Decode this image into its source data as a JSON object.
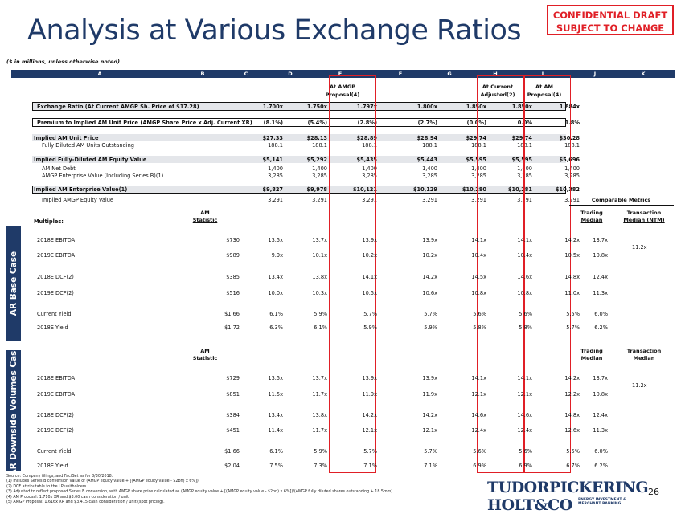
{
  "title": "Analysis at Various Exchange Ratios",
  "confidential": [
    "CONFIDENTIAL DRAFT",
    "SUBJECT TO CHANGE"
  ],
  "units_note": "($ in millions, unless otherwise noted)",
  "letters": [
    "A",
    "B",
    "C",
    "D",
    "E",
    "F",
    "G",
    "H",
    "I",
    "J",
    "K"
  ],
  "col_headers": {
    "E": [
      "At AMGP",
      "Proposal(4)"
    ],
    "H": [
      "At Current",
      "Adjusted(2)"
    ],
    "I": [
      "At AM",
      "Proposal(4)"
    ]
  },
  "top_rows": [
    {
      "label": "Exchange Ratio (At Current AMGP Sh. Price of $17.28)",
      "values": [
        "1.700x",
        "1.750x",
        "1.797x",
        "1.800x",
        "1.850x",
        "1.850x",
        "1.884x"
      ]
    },
    {
      "label": "Premium to Implied AM Unit Price (AMGP Share Price x Adj. Current XR)",
      "values": [
        "(8.1%)",
        "(5.4%)",
        "(2.8%)",
        "(2.7%)",
        "(0.0%)",
        "0.0%",
        "1.8%"
      ]
    },
    {
      "label": "Implied AM Unit Price",
      "values": [
        "$27.33",
        "$28.13",
        "$28.89",
        "$28.94",
        "$29.74",
        "$29.74",
        "$30.28"
      ]
    },
    {
      "label": "Fully Diluted AM Units Outstanding",
      "values": [
        "188.1",
        "188.1",
        "188.1",
        "188.1",
        "188.1",
        "188.1",
        "188.1"
      ]
    },
    {
      "label": "Implied Fully-Diluted AM Equity Value",
      "values": [
        "$5,141",
        "$5,292",
        "$5,435",
        "$5,443",
        "$5,595",
        "$5,595",
        "$5,696"
      ]
    },
    {
      "label": "AM Net Debt",
      "values": [
        "1,400",
        "1,400",
        "1,400",
        "1,400",
        "1,400",
        "1,400",
        "1,400"
      ]
    },
    {
      "label": "AMGP Enterprise Value (Including Series B)(1)",
      "values": [
        "3,285",
        "3,285",
        "3,285",
        "3,285",
        "3,285",
        "3,285",
        "3,285"
      ]
    },
    {
      "label": "Implied AM Enterprise Value(1)",
      "values": [
        "$9,827",
        "$9,978",
        "$10,121",
        "$10,129",
        "$10,280",
        "$10,281",
        "$10,382"
      ]
    },
    {
      "label": "Implied AMGP Equity Value",
      "values": [
        "3,291",
        "3,291",
        "3,291",
        "3,291",
        "3,291",
        "3,291",
        "3,291"
      ]
    }
  ],
  "comparable_metrics": "Comparable Metrics",
  "multiples_label": "Multiples:",
  "base": {
    "side_label": "AR Base Case",
    "hdr_stat": [
      "AM",
      "Statistic"
    ],
    "hdr_trading": [
      "Trading",
      "Median"
    ],
    "hdr_transaction": [
      "Transaction",
      "Median (NTM)"
    ],
    "transaction_value": "11.2x",
    "rows": [
      {
        "label": "2018E EBITDA",
        "stat": "$730",
        "values": [
          "13.5x",
          "13.7x",
          "13.9x",
          "13.9x",
          "14.1x",
          "14.1x",
          "14.2x"
        ],
        "trading": "13.7x"
      },
      {
        "label": "2019E EBITDA",
        "stat": "$989",
        "values": [
          "9.9x",
          "10.1x",
          "10.2x",
          "10.2x",
          "10.4x",
          "10.4x",
          "10.5x"
        ],
        "trading": "10.8x"
      },
      {
        "label": "2018E DCF(2)",
        "stat": "$385",
        "values": [
          "13.4x",
          "13.8x",
          "14.1x",
          "14.2x",
          "14.5x",
          "14.6x",
          "14.8x"
        ],
        "trading": "12.4x"
      },
      {
        "label": "2019E DCF(2)",
        "stat": "$516",
        "values": [
          "10.0x",
          "10.3x",
          "10.5x",
          "10.6x",
          "10.8x",
          "10.8x",
          "11.0x"
        ],
        "trading": "11.3x"
      },
      {
        "label": "Current Yield",
        "stat": "$1.66",
        "values": [
          "6.1%",
          "5.9%",
          "5.7%",
          "5.7%",
          "5.6%",
          "5.6%",
          "5.5%"
        ],
        "trading": "6.0%"
      },
      {
        "label": "2018E Yield",
        "stat": "$1.72",
        "values": [
          "6.3%",
          "6.1%",
          "5.9%",
          "5.9%",
          "5.8%",
          "5.8%",
          "5.7%"
        ],
        "trading": "6.2%"
      }
    ]
  },
  "downside": {
    "side_label": "AR Downside Volumes Case",
    "hdr_stat": [
      "AM",
      "Statistic"
    ],
    "hdr_trading": [
      "Trading",
      "Median"
    ],
    "hdr_transaction": [
      "Transaction",
      "Median"
    ],
    "transaction_value": "11.2x",
    "rows": [
      {
        "label": "2018E EBITDA",
        "stat": "$729",
        "values": [
          "13.5x",
          "13.7x",
          "13.9x",
          "13.9x",
          "14.1x",
          "14.1x",
          "14.2x"
        ],
        "trading": "13.7x"
      },
      {
        "label": "2019E EBITDA",
        "stat": "$851",
        "values": [
          "11.5x",
          "11.7x",
          "11.9x",
          "11.9x",
          "12.1x",
          "12.1x",
          "12.2x"
        ],
        "trading": "10.8x"
      },
      {
        "label": "2018E DCF(2)",
        "stat": "$384",
        "values": [
          "13.4x",
          "13.8x",
          "14.2x",
          "14.2x",
          "14.6x",
          "14.6x",
          "14.8x"
        ],
        "trading": "12.4x"
      },
      {
        "label": "2019E DCF(2)",
        "stat": "$451",
        "values": [
          "11.4x",
          "11.7x",
          "12.1x",
          "12.1x",
          "12.4x",
          "12.4x",
          "12.6x"
        ],
        "trading": "11.3x"
      },
      {
        "label": "Current Yield",
        "stat": "$1.66",
        "values": [
          "6.1%",
          "5.9%",
          "5.7%",
          "5.7%",
          "5.6%",
          "5.6%",
          "5.5%"
        ],
        "trading": "6.0%"
      },
      {
        "label": "2018E Yield",
        "stat": "$2.04",
        "values": [
          "7.5%",
          "7.3%",
          "7.1%",
          "7.1%",
          "6.9%",
          "6.9%",
          "6.7%"
        ],
        "trading": "6.2%"
      }
    ]
  },
  "footnotes": [
    "Source: Company filings, and FactSet as for 8/30/2018.",
    "(1)      Includes Series B conversion value of (AMGP equity value + [(AMGP equity value - $2bn) x 6%]).",
    "(2)      DCF attributable to the LP unitholders.",
    "(3)      Adjusted to reflect proposed Series B conversion, with AMGP share price calculated as (AMGP equity value + [(AMGP equity value - $2bn) x 6%])/(AMGP fully diluted shares outstanding + 18.5mm).",
    "(4)      AM Proposal: 1.710x XR and $3.00 cash consideration / unit.",
    "(5)      AMGP Proposal: 1.616x XR and $3.415 cash consideration / unit (spot pricing)."
  ],
  "logo": [
    "TUDORPICKERING",
    "HOLT&CO",
    "ENERGY INVESTMENT &",
    "MERCHANT BANKING"
  ],
  "page_number": "26",
  "colors": {
    "navy": "#1f3a68",
    "red": "#e01f26",
    "band": "#e4e6ea"
  }
}
